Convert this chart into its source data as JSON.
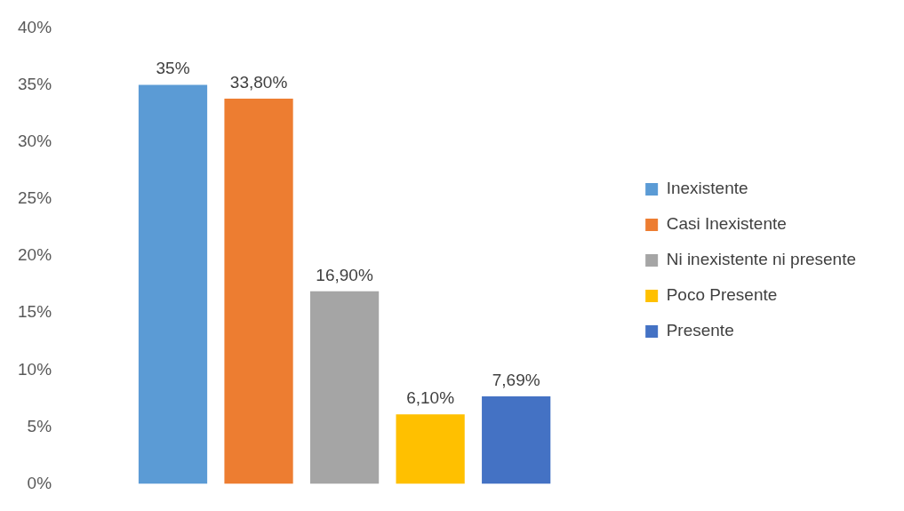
{
  "chart_data": {
    "type": "bar",
    "categories": [
      null
    ],
    "series": [
      {
        "name": "Inexistente",
        "color": "#5b9bd5",
        "values": [
          35
        ],
        "value_labels": [
          "35%"
        ]
      },
      {
        "name": "Casi Inexistente",
        "color": "#ed7d31",
        "values": [
          33.8
        ],
        "value_labels": [
          "33,80%"
        ]
      },
      {
        "name": "Ni inexistente ni presente",
        "color": "#a5a5a5",
        "values": [
          16.9
        ],
        "value_labels": [
          "16,90%"
        ]
      },
      {
        "name": "Poco Presente",
        "color": "#ffc000",
        "values": [
          6.1
        ],
        "value_labels": [
          "6,10%"
        ]
      },
      {
        "name": "Presente",
        "color": "#4472c4",
        "values": [
          7.69
        ],
        "value_labels": [
          "7,69%"
        ]
      }
    ],
    "ylim": [
      0,
      40
    ],
    "yticks": [
      {
        "value": 0,
        "label": "0%"
      },
      {
        "value": 5,
        "label": "5%"
      },
      {
        "value": 10,
        "label": "10%"
      },
      {
        "value": 15,
        "label": "15%"
      },
      {
        "value": 20,
        "label": "20%"
      },
      {
        "value": 25,
        "label": "25%"
      },
      {
        "value": 30,
        "label": "30%"
      },
      {
        "value": 35,
        "label": "35%"
      },
      {
        "value": 40,
        "label": "40%"
      }
    ],
    "grid": false,
    "legend": "right"
  }
}
